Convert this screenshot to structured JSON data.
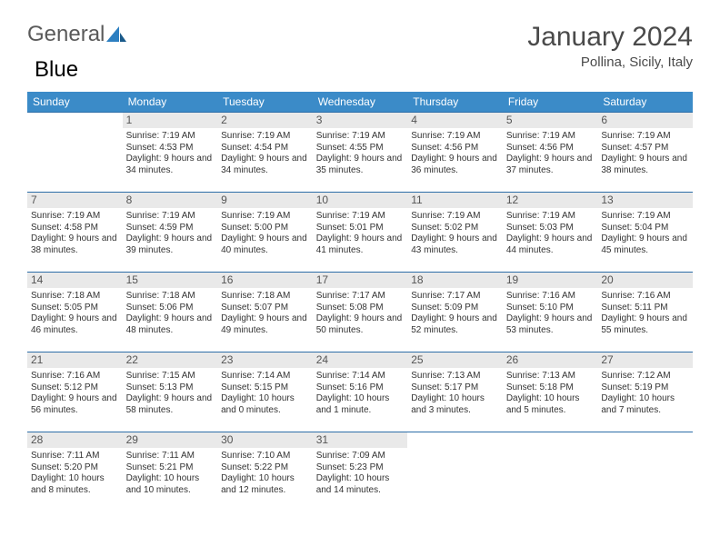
{
  "brand": {
    "part1": "General",
    "part2": "Blue"
  },
  "title": "January 2024",
  "subtitle": "Pollina, Sicily, Italy",
  "colors": {
    "header_bg": "#3b8bc8",
    "header_text": "#ffffff",
    "row_border": "#2d6ea8",
    "daynum_bg": "#e9e9e9",
    "text": "#333333",
    "title_color": "#4a4a4a",
    "logo_gray": "#5a5a5a",
    "logo_blue": "#2d7fc1"
  },
  "weekdays": [
    "Sunday",
    "Monday",
    "Tuesday",
    "Wednesday",
    "Thursday",
    "Friday",
    "Saturday"
  ],
  "weeks": [
    [
      null,
      {
        "n": "1",
        "sr": "Sunrise: 7:19 AM",
        "ss": "Sunset: 4:53 PM",
        "dl": "Daylight: 9 hours and 34 minutes."
      },
      {
        "n": "2",
        "sr": "Sunrise: 7:19 AM",
        "ss": "Sunset: 4:54 PM",
        "dl": "Daylight: 9 hours and 34 minutes."
      },
      {
        "n": "3",
        "sr": "Sunrise: 7:19 AM",
        "ss": "Sunset: 4:55 PM",
        "dl": "Daylight: 9 hours and 35 minutes."
      },
      {
        "n": "4",
        "sr": "Sunrise: 7:19 AM",
        "ss": "Sunset: 4:56 PM",
        "dl": "Daylight: 9 hours and 36 minutes."
      },
      {
        "n": "5",
        "sr": "Sunrise: 7:19 AM",
        "ss": "Sunset: 4:56 PM",
        "dl": "Daylight: 9 hours and 37 minutes."
      },
      {
        "n": "6",
        "sr": "Sunrise: 7:19 AM",
        "ss": "Sunset: 4:57 PM",
        "dl": "Daylight: 9 hours and 38 minutes."
      }
    ],
    [
      {
        "n": "7",
        "sr": "Sunrise: 7:19 AM",
        "ss": "Sunset: 4:58 PM",
        "dl": "Daylight: 9 hours and 38 minutes."
      },
      {
        "n": "8",
        "sr": "Sunrise: 7:19 AM",
        "ss": "Sunset: 4:59 PM",
        "dl": "Daylight: 9 hours and 39 minutes."
      },
      {
        "n": "9",
        "sr": "Sunrise: 7:19 AM",
        "ss": "Sunset: 5:00 PM",
        "dl": "Daylight: 9 hours and 40 minutes."
      },
      {
        "n": "10",
        "sr": "Sunrise: 7:19 AM",
        "ss": "Sunset: 5:01 PM",
        "dl": "Daylight: 9 hours and 41 minutes."
      },
      {
        "n": "11",
        "sr": "Sunrise: 7:19 AM",
        "ss": "Sunset: 5:02 PM",
        "dl": "Daylight: 9 hours and 43 minutes."
      },
      {
        "n": "12",
        "sr": "Sunrise: 7:19 AM",
        "ss": "Sunset: 5:03 PM",
        "dl": "Daylight: 9 hours and 44 minutes."
      },
      {
        "n": "13",
        "sr": "Sunrise: 7:19 AM",
        "ss": "Sunset: 5:04 PM",
        "dl": "Daylight: 9 hours and 45 minutes."
      }
    ],
    [
      {
        "n": "14",
        "sr": "Sunrise: 7:18 AM",
        "ss": "Sunset: 5:05 PM",
        "dl": "Daylight: 9 hours and 46 minutes."
      },
      {
        "n": "15",
        "sr": "Sunrise: 7:18 AM",
        "ss": "Sunset: 5:06 PM",
        "dl": "Daylight: 9 hours and 48 minutes."
      },
      {
        "n": "16",
        "sr": "Sunrise: 7:18 AM",
        "ss": "Sunset: 5:07 PM",
        "dl": "Daylight: 9 hours and 49 minutes."
      },
      {
        "n": "17",
        "sr": "Sunrise: 7:17 AM",
        "ss": "Sunset: 5:08 PM",
        "dl": "Daylight: 9 hours and 50 minutes."
      },
      {
        "n": "18",
        "sr": "Sunrise: 7:17 AM",
        "ss": "Sunset: 5:09 PM",
        "dl": "Daylight: 9 hours and 52 minutes."
      },
      {
        "n": "19",
        "sr": "Sunrise: 7:16 AM",
        "ss": "Sunset: 5:10 PM",
        "dl": "Daylight: 9 hours and 53 minutes."
      },
      {
        "n": "20",
        "sr": "Sunrise: 7:16 AM",
        "ss": "Sunset: 5:11 PM",
        "dl": "Daylight: 9 hours and 55 minutes."
      }
    ],
    [
      {
        "n": "21",
        "sr": "Sunrise: 7:16 AM",
        "ss": "Sunset: 5:12 PM",
        "dl": "Daylight: 9 hours and 56 minutes."
      },
      {
        "n": "22",
        "sr": "Sunrise: 7:15 AM",
        "ss": "Sunset: 5:13 PM",
        "dl": "Daylight: 9 hours and 58 minutes."
      },
      {
        "n": "23",
        "sr": "Sunrise: 7:14 AM",
        "ss": "Sunset: 5:15 PM",
        "dl": "Daylight: 10 hours and 0 minutes."
      },
      {
        "n": "24",
        "sr": "Sunrise: 7:14 AM",
        "ss": "Sunset: 5:16 PM",
        "dl": "Daylight: 10 hours and 1 minute."
      },
      {
        "n": "25",
        "sr": "Sunrise: 7:13 AM",
        "ss": "Sunset: 5:17 PM",
        "dl": "Daylight: 10 hours and 3 minutes."
      },
      {
        "n": "26",
        "sr": "Sunrise: 7:13 AM",
        "ss": "Sunset: 5:18 PM",
        "dl": "Daylight: 10 hours and 5 minutes."
      },
      {
        "n": "27",
        "sr": "Sunrise: 7:12 AM",
        "ss": "Sunset: 5:19 PM",
        "dl": "Daylight: 10 hours and 7 minutes."
      }
    ],
    [
      {
        "n": "28",
        "sr": "Sunrise: 7:11 AM",
        "ss": "Sunset: 5:20 PM",
        "dl": "Daylight: 10 hours and 8 minutes."
      },
      {
        "n": "29",
        "sr": "Sunrise: 7:11 AM",
        "ss": "Sunset: 5:21 PM",
        "dl": "Daylight: 10 hours and 10 minutes."
      },
      {
        "n": "30",
        "sr": "Sunrise: 7:10 AM",
        "ss": "Sunset: 5:22 PM",
        "dl": "Daylight: 10 hours and 12 minutes."
      },
      {
        "n": "31",
        "sr": "Sunrise: 7:09 AM",
        "ss": "Sunset: 5:23 PM",
        "dl": "Daylight: 10 hours and 14 minutes."
      },
      null,
      null,
      null
    ]
  ]
}
